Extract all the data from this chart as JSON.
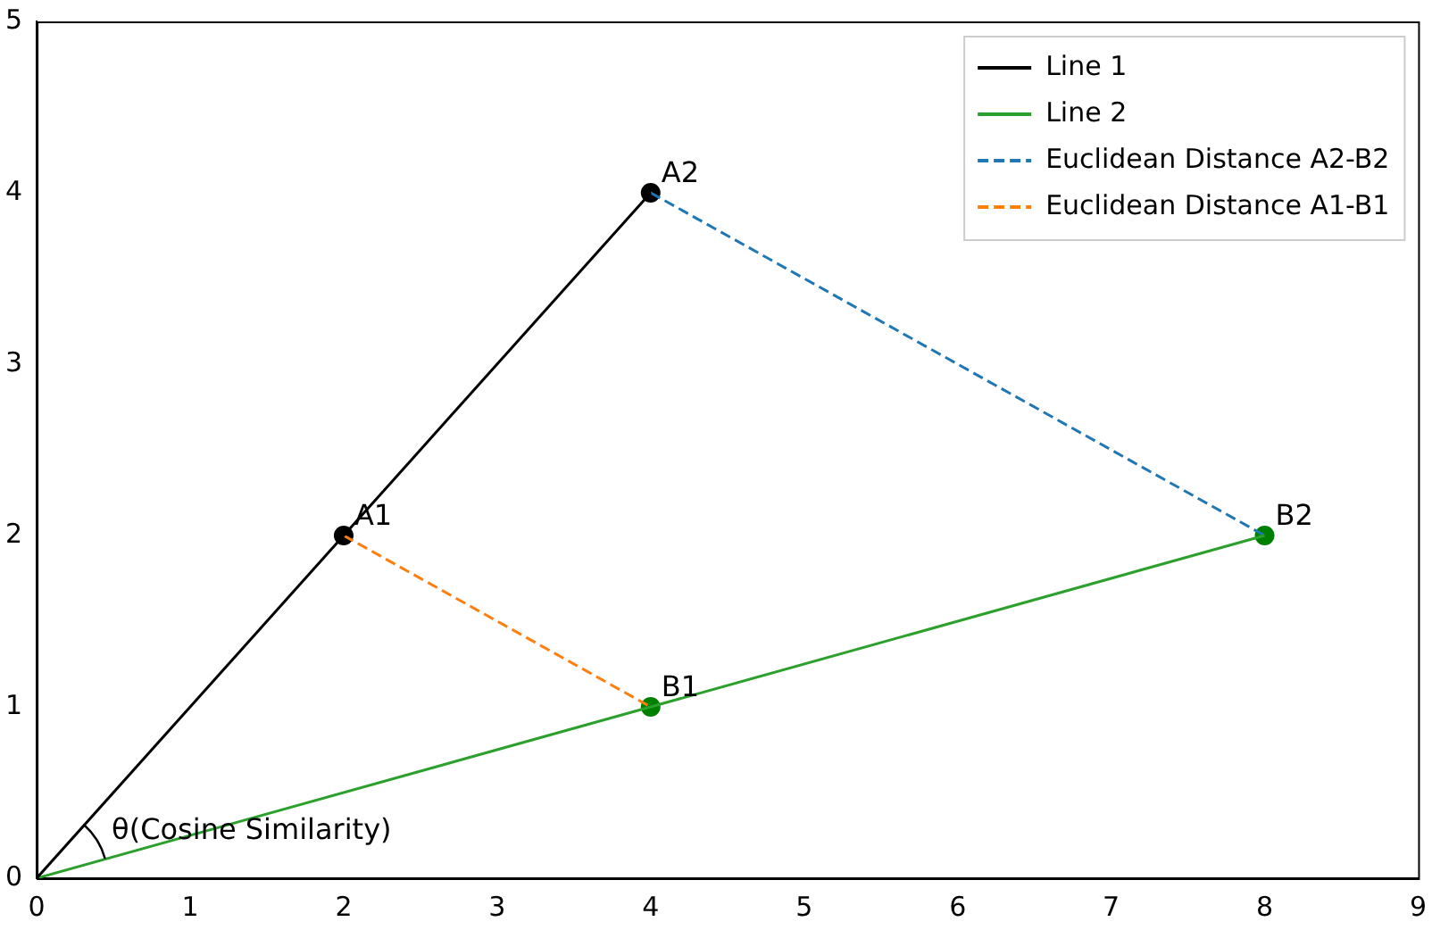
{
  "chart_data": {
    "type": "line",
    "xlim": [
      0,
      9
    ],
    "ylim": [
      0,
      5
    ],
    "xticks": [
      0,
      1,
      2,
      3,
      4,
      5,
      6,
      7,
      8,
      9
    ],
    "yticks": [
      0,
      1,
      2,
      3,
      4,
      5
    ],
    "grid": false,
    "legend": "top right",
    "series": [
      {
        "name": "Line 1",
        "color": "#000000",
        "x": [
          0,
          2,
          4
        ],
        "values": [
          0,
          2,
          4
        ]
      },
      {
        "name": "Line 2",
        "color": "#2ca02c",
        "x": [
          0,
          4,
          8
        ],
        "values": [
          0,
          1,
          2
        ]
      },
      {
        "name": "Euclidean Distance A2-B2",
        "color": "#1f77b4",
        "x": [
          4,
          8
        ],
        "values": [
          4,
          2
        ],
        "line_style": "dashed"
      },
      {
        "name": "Euclidean Distance A1-B1",
        "color": "#ff7f0e",
        "x": [
          2,
          4
        ],
        "values": [
          2,
          1
        ],
        "line_style": "dashed"
      },
      {
        "type": "scatter",
        "color": "#000000",
        "x": [
          2,
          4
        ],
        "values": [
          2,
          4
        ]
      },
      {
        "type": "scatter",
        "color": "#008000",
        "x": [
          4,
          8
        ],
        "values": [
          1,
          2
        ]
      }
    ],
    "annotations": [
      {
        "text": "A1",
        "x": 2,
        "y": 2
      },
      {
        "text": "A2",
        "x": 4,
        "y": 4
      },
      {
        "text": "B1",
        "x": 4,
        "y": 1
      },
      {
        "text": "B2",
        "x": 8,
        "y": 2
      },
      "θ(Cosine Similarity)"
    ]
  }
}
